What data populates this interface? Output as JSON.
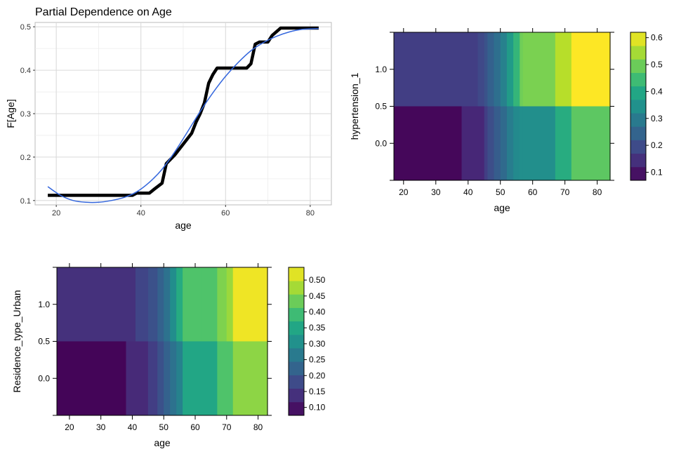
{
  "chart_data": [
    {
      "type": "line",
      "title": "Partial Dependence on Age",
      "xlabel": "age",
      "ylabel": "F[Age]",
      "xlim": [
        15,
        85
      ],
      "ylim": [
        0.09,
        0.51
      ],
      "xticks": [
        20,
        40,
        60,
        80
      ],
      "yticks": [
        0.1,
        0.2,
        0.3,
        0.4,
        0.5
      ],
      "grid": true,
      "series": [
        {
          "kind": "step",
          "color": "#000000",
          "x": [
            18,
            38,
            39,
            42,
            43,
            45,
            46,
            48,
            50,
            52,
            53,
            54,
            55,
            56,
            57,
            58,
            63,
            65,
            66,
            67,
            68,
            70,
            71,
            73,
            82
          ],
          "y": [
            0.112,
            0.112,
            0.117,
            0.117,
            0.125,
            0.14,
            0.185,
            0.205,
            0.23,
            0.255,
            0.28,
            0.3,
            0.325,
            0.37,
            0.39,
            0.405,
            0.405,
            0.405,
            0.415,
            0.46,
            0.465,
            0.465,
            0.48,
            0.497,
            0.497
          ]
        },
        {
          "kind": "smooth",
          "color": "#3366dd",
          "x": [
            18,
            21,
            24,
            27,
            30,
            33,
            36,
            39,
            42,
            45,
            48,
            51,
            54,
            57,
            60,
            63,
            66,
            69,
            72,
            75,
            78,
            82
          ],
          "y": [
            0.132,
            0.112,
            0.1,
            0.096,
            0.096,
            0.1,
            0.107,
            0.12,
            0.142,
            0.172,
            0.212,
            0.258,
            0.305,
            0.348,
            0.386,
            0.418,
            0.445,
            0.464,
            0.478,
            0.488,
            0.494,
            0.496
          ]
        }
      ]
    },
    {
      "type": "heatmap",
      "xlabel": "age",
      "ylabel": "hypertension_1",
      "xlim": [
        17,
        84
      ],
      "xticks": [
        20,
        30,
        40,
        50,
        60,
        70,
        80
      ],
      "yticks": [
        "0.0",
        "0.5",
        "1.0"
      ],
      "legend": {
        "position": "right",
        "ticks": [
          0.1,
          0.2,
          0.3,
          0.4,
          0.5,
          0.6
        ],
        "range": [
          0.07,
          0.62
        ]
      },
      "rows": [
        {
          "y_range": [
            0.5,
            1.5
          ],
          "x_breaks": [
            17,
            43,
            45,
            46,
            48,
            50,
            52,
            54,
            56,
            57,
            67,
            72,
            84
          ],
          "values": [
            0.17,
            0.19,
            0.21,
            0.24,
            0.27,
            0.31,
            0.37,
            0.43,
            0.5,
            0.51,
            0.56,
            0.62
          ]
        },
        {
          "y_range": [
            -0.5,
            0.5
          ],
          "x_breaks": [
            17,
            38,
            45,
            46,
            48,
            50,
            52,
            54,
            56,
            57,
            67,
            72,
            84
          ],
          "values": [
            0.08,
            0.13,
            0.17,
            0.2,
            0.23,
            0.26,
            0.3,
            0.33,
            0.34,
            0.34,
            0.41,
            0.48
          ]
        }
      ]
    },
    {
      "type": "heatmap",
      "xlabel": "age",
      "ylabel": "Residence_type_Urban",
      "xlim": [
        16,
        83
      ],
      "xticks": [
        20,
        30,
        40,
        50,
        60,
        70,
        80
      ],
      "yticks": [
        "0.0",
        "0.5",
        "1.0"
      ],
      "legend": {
        "position": "right",
        "ticks": [
          0.1,
          0.15,
          0.2,
          0.25,
          0.3,
          0.35,
          0.4,
          0.45,
          0.5
        ],
        "range": [
          0.075,
          0.54
        ]
      },
      "rows": [
        {
          "y_range": [
            0.5,
            1.5
          ],
          "x_breaks": [
            16,
            41,
            45,
            48,
            50,
            52,
            54,
            56,
            62,
            67,
            70,
            72,
            83
          ],
          "values": [
            0.14,
            0.17,
            0.19,
            0.22,
            0.25,
            0.3,
            0.36,
            0.41,
            0.41,
            0.45,
            0.47,
            0.53
          ]
        },
        {
          "y_range": [
            -0.5,
            0.5
          ],
          "x_breaks": [
            16,
            37,
            38,
            45,
            48,
            50,
            52,
            54,
            56,
            62,
            67,
            72,
            83
          ],
          "values": [
            0.08,
            0.08,
            0.13,
            0.16,
            0.19,
            0.22,
            0.25,
            0.28,
            0.35,
            0.35,
            0.41,
            0.46
          ]
        }
      ]
    }
  ]
}
